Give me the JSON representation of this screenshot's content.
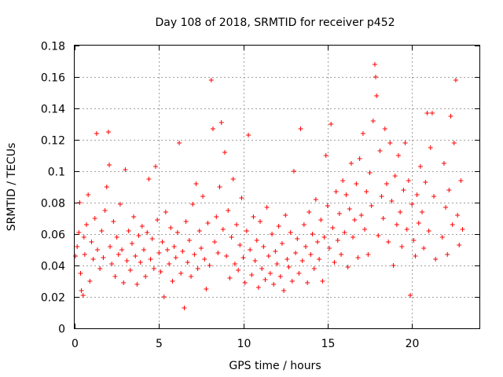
{
  "chart_data": {
    "type": "scatter",
    "title": "Day 108 of 2018, SRMTID for receiver p452",
    "xlabel": "GPS time / hours",
    "ylabel": "SRMTID / TECUs",
    "xlim": [
      0,
      24
    ],
    "ylim": [
      0,
      0.18
    ],
    "xticks": [
      0,
      5,
      10,
      15,
      20
    ],
    "xtick_labels": [
      "0",
      "5",
      "10",
      "15",
      "20"
    ],
    "yticks": [
      0,
      0.02,
      0.04,
      0.06,
      0.08,
      0.1,
      0.12,
      0.14,
      0.16,
      0.18
    ],
    "ytick_labels": [
      "0",
      "0.02",
      "0.04",
      "0.06",
      "0.08",
      "0.1",
      "0.12",
      "0.14",
      "0.16",
      "0.18"
    ],
    "grid": true,
    "marker": "plus",
    "color": "#ff0000",
    "series": [
      {
        "name": "SRMTID",
        "points": [
          [
            0.05,
            0.046
          ],
          [
            0.15,
            0.052
          ],
          [
            0.25,
            0.061
          ],
          [
            0.3,
            0.08
          ],
          [
            0.35,
            0.035
          ],
          [
            0.4,
            0.024
          ],
          [
            0.5,
            0.021
          ],
          [
            0.55,
            0.058
          ],
          [
            0.6,
            0.047
          ],
          [
            0.7,
            0.066
          ],
          [
            0.8,
            0.085
          ],
          [
            0.9,
            0.03
          ],
          [
            1.0,
            0.055
          ],
          [
            1.1,
            0.044
          ],
          [
            1.2,
            0.07
          ],
          [
            1.3,
            0.124
          ],
          [
            1.35,
            0.05
          ],
          [
            1.5,
            0.038
          ],
          [
            1.6,
            0.062
          ],
          [
            1.7,
            0.045
          ],
          [
            1.8,
            0.075
          ],
          [
            1.9,
            0.09
          ],
          [
            2.0,
            0.125
          ],
          [
            2.05,
            0.104
          ],
          [
            2.1,
            0.052
          ],
          [
            2.2,
            0.041
          ],
          [
            2.3,
            0.068
          ],
          [
            2.4,
            0.033
          ],
          [
            2.5,
            0.058
          ],
          [
            2.6,
            0.047
          ],
          [
            2.7,
            0.079
          ],
          [
            2.8,
            0.05
          ],
          [
            2.9,
            0.029
          ],
          [
            3.0,
            0.101
          ],
          [
            3.1,
            0.043
          ],
          [
            3.2,
            0.062
          ],
          [
            3.3,
            0.037
          ],
          [
            3.4,
            0.054
          ],
          [
            3.5,
            0.071
          ],
          [
            3.6,
            0.046
          ],
          [
            3.7,
            0.028
          ],
          [
            3.8,
            0.059
          ],
          [
            3.9,
            0.042
          ],
          [
            4.0,
            0.065
          ],
          [
            4.1,
            0.05
          ],
          [
            4.2,
            0.033
          ],
          [
            4.3,
            0.061
          ],
          [
            4.4,
            0.095
          ],
          [
            4.5,
            0.044
          ],
          [
            4.6,
            0.057
          ],
          [
            4.7,
            0.038
          ],
          [
            4.8,
            0.103
          ],
          [
            4.9,
            0.069
          ],
          [
            5.0,
            0.048
          ],
          [
            5.1,
            0.036
          ],
          [
            5.2,
            0.055
          ],
          [
            5.3,
            0.02
          ],
          [
            5.4,
            0.074
          ],
          [
            5.5,
            0.05
          ],
          [
            5.6,
            0.041
          ],
          [
            5.7,
            0.064
          ],
          [
            5.8,
            0.03
          ],
          [
            5.9,
            0.052
          ],
          [
            6.0,
            0.045
          ],
          [
            6.1,
            0.061
          ],
          [
            6.2,
            0.118
          ],
          [
            6.3,
            0.035
          ],
          [
            6.4,
            0.049
          ],
          [
            6.5,
            0.013
          ],
          [
            6.6,
            0.068
          ],
          [
            6.7,
            0.042
          ],
          [
            6.8,
            0.056
          ],
          [
            6.9,
            0.033
          ],
          [
            7.0,
            0.079
          ],
          [
            7.1,
            0.047
          ],
          [
            7.2,
            0.092
          ],
          [
            7.3,
            0.038
          ],
          [
            7.4,
            0.062
          ],
          [
            7.5,
            0.051
          ],
          [
            7.6,
            0.084
          ],
          [
            7.7,
            0.044
          ],
          [
            7.8,
            0.025
          ],
          [
            7.9,
            0.067
          ],
          [
            8.0,
            0.04
          ],
          [
            8.1,
            0.158
          ],
          [
            8.2,
            0.127
          ],
          [
            8.3,
            0.055
          ],
          [
            8.4,
            0.071
          ],
          [
            8.5,
            0.048
          ],
          [
            8.6,
            0.09
          ],
          [
            8.7,
            0.131
          ],
          [
            8.8,
            0.063
          ],
          [
            8.9,
            0.112
          ],
          [
            9.0,
            0.046
          ],
          [
            9.1,
            0.075
          ],
          [
            9.2,
            0.032
          ],
          [
            9.3,
            0.058
          ],
          [
            9.4,
            0.095
          ],
          [
            9.5,
            0.041
          ],
          [
            9.6,
            0.066
          ],
          [
            9.7,
            0.037
          ],
          [
            9.8,
            0.053
          ],
          [
            9.9,
            0.083
          ],
          [
            10.0,
            0.045
          ],
          [
            10.1,
            0.029
          ],
          [
            10.2,
            0.062
          ],
          [
            10.3,
            0.123
          ],
          [
            10.4,
            0.05
          ],
          [
            10.5,
            0.034
          ],
          [
            10.6,
            0.071
          ],
          [
            10.7,
            0.043
          ],
          [
            10.8,
            0.056
          ],
          [
            10.9,
            0.026
          ],
          [
            11.0,
            0.068
          ],
          [
            11.1,
            0.038
          ],
          [
            11.2,
            0.052
          ],
          [
            11.3,
            0.031
          ],
          [
            11.4,
            0.077
          ],
          [
            11.5,
            0.046
          ],
          [
            11.6,
            0.035
          ],
          [
            11.7,
            0.06
          ],
          [
            11.8,
            0.028
          ],
          [
            11.9,
            0.049
          ],
          [
            12.0,
            0.041
          ],
          [
            12.1,
            0.065
          ],
          [
            12.2,
            0.033
          ],
          [
            12.3,
            0.054
          ],
          [
            12.4,
            0.024
          ],
          [
            12.5,
            0.072
          ],
          [
            12.6,
            0.044
          ],
          [
            12.7,
            0.039
          ],
          [
            12.8,
            0.061
          ],
          [
            12.9,
            0.03
          ],
          [
            13.0,
            0.1
          ],
          [
            13.1,
            0.048
          ],
          [
            13.2,
            0.057
          ],
          [
            13.3,
            0.035
          ],
          [
            13.4,
            0.127
          ],
          [
            13.5,
            0.043
          ],
          [
            13.6,
            0.066
          ],
          [
            13.7,
            0.052
          ],
          [
            13.8,
            0.029
          ],
          [
            13.9,
            0.074
          ],
          [
            14.0,
            0.047
          ],
          [
            14.1,
            0.06
          ],
          [
            14.2,
            0.038
          ],
          [
            14.3,
            0.082
          ],
          [
            14.4,
            0.055
          ],
          [
            14.5,
            0.044
          ],
          [
            14.6,
            0.069
          ],
          [
            14.7,
            0.03
          ],
          [
            14.8,
            0.058
          ],
          [
            14.9,
            0.11
          ],
          [
            15.0,
            0.078
          ],
          [
            15.1,
            0.051
          ],
          [
            15.2,
            0.13
          ],
          [
            15.3,
            0.064
          ],
          [
            15.4,
            0.042
          ],
          [
            15.5,
            0.087
          ],
          [
            15.6,
            0.056
          ],
          [
            15.7,
            0.073
          ],
          [
            15.8,
            0.047
          ],
          [
            15.9,
            0.094
          ],
          [
            16.0,
            0.061
          ],
          [
            16.1,
            0.085
          ],
          [
            16.2,
            0.039
          ],
          [
            16.3,
            0.076
          ],
          [
            16.4,
            0.105
          ],
          [
            16.5,
            0.058
          ],
          [
            16.6,
            0.069
          ],
          [
            16.7,
            0.092
          ],
          [
            16.8,
            0.045
          ],
          [
            16.9,
            0.108
          ],
          [
            17.0,
            0.072
          ],
          [
            17.1,
            0.124
          ],
          [
            17.2,
            0.063
          ],
          [
            17.3,
            0.087
          ],
          [
            17.4,
            0.047
          ],
          [
            17.5,
            0.099
          ],
          [
            17.6,
            0.078
          ],
          [
            17.7,
            0.132
          ],
          [
            17.8,
            0.168
          ],
          [
            17.85,
            0.16
          ],
          [
            17.9,
            0.148
          ],
          [
            18.0,
            0.059
          ],
          [
            18.1,
            0.113
          ],
          [
            18.2,
            0.084
          ],
          [
            18.3,
            0.07
          ],
          [
            18.4,
            0.127
          ],
          [
            18.5,
            0.092
          ],
          [
            18.6,
            0.055
          ],
          [
            18.7,
            0.118
          ],
          [
            18.8,
            0.081
          ],
          [
            18.9,
            0.04
          ],
          [
            19.0,
            0.097
          ],
          [
            19.1,
            0.066
          ],
          [
            19.2,
            0.11
          ],
          [
            19.3,
            0.074
          ],
          [
            19.4,
            0.052
          ],
          [
            19.5,
            0.088
          ],
          [
            19.6,
            0.118
          ],
          [
            19.7,
            0.063
          ],
          [
            19.8,
            0.094
          ],
          [
            19.9,
            0.021
          ],
          [
            20.0,
            0.079
          ],
          [
            20.1,
            0.056
          ],
          [
            20.2,
            0.046
          ],
          [
            20.3,
            0.085
          ],
          [
            20.4,
            0.067
          ],
          [
            20.5,
            0.103
          ],
          [
            20.6,
            0.074
          ],
          [
            20.7,
            0.051
          ],
          [
            20.8,
            0.093
          ],
          [
            20.9,
            0.137
          ],
          [
            21.0,
            0.062
          ],
          [
            21.1,
            0.115
          ],
          [
            21.2,
            0.137
          ],
          [
            21.3,
            0.084
          ],
          [
            21.4,
            0.044
          ],
          [
            21.8,
            0.058
          ],
          [
            21.9,
            0.105
          ],
          [
            22.0,
            0.077
          ],
          [
            22.1,
            0.047
          ],
          [
            22.2,
            0.088
          ],
          [
            22.3,
            0.135
          ],
          [
            22.4,
            0.066
          ],
          [
            22.5,
            0.118
          ],
          [
            22.6,
            0.158
          ],
          [
            22.7,
            0.072
          ],
          [
            22.8,
            0.053
          ],
          [
            22.9,
            0.094
          ],
          [
            23.0,
            0.063
          ]
        ]
      }
    ]
  }
}
